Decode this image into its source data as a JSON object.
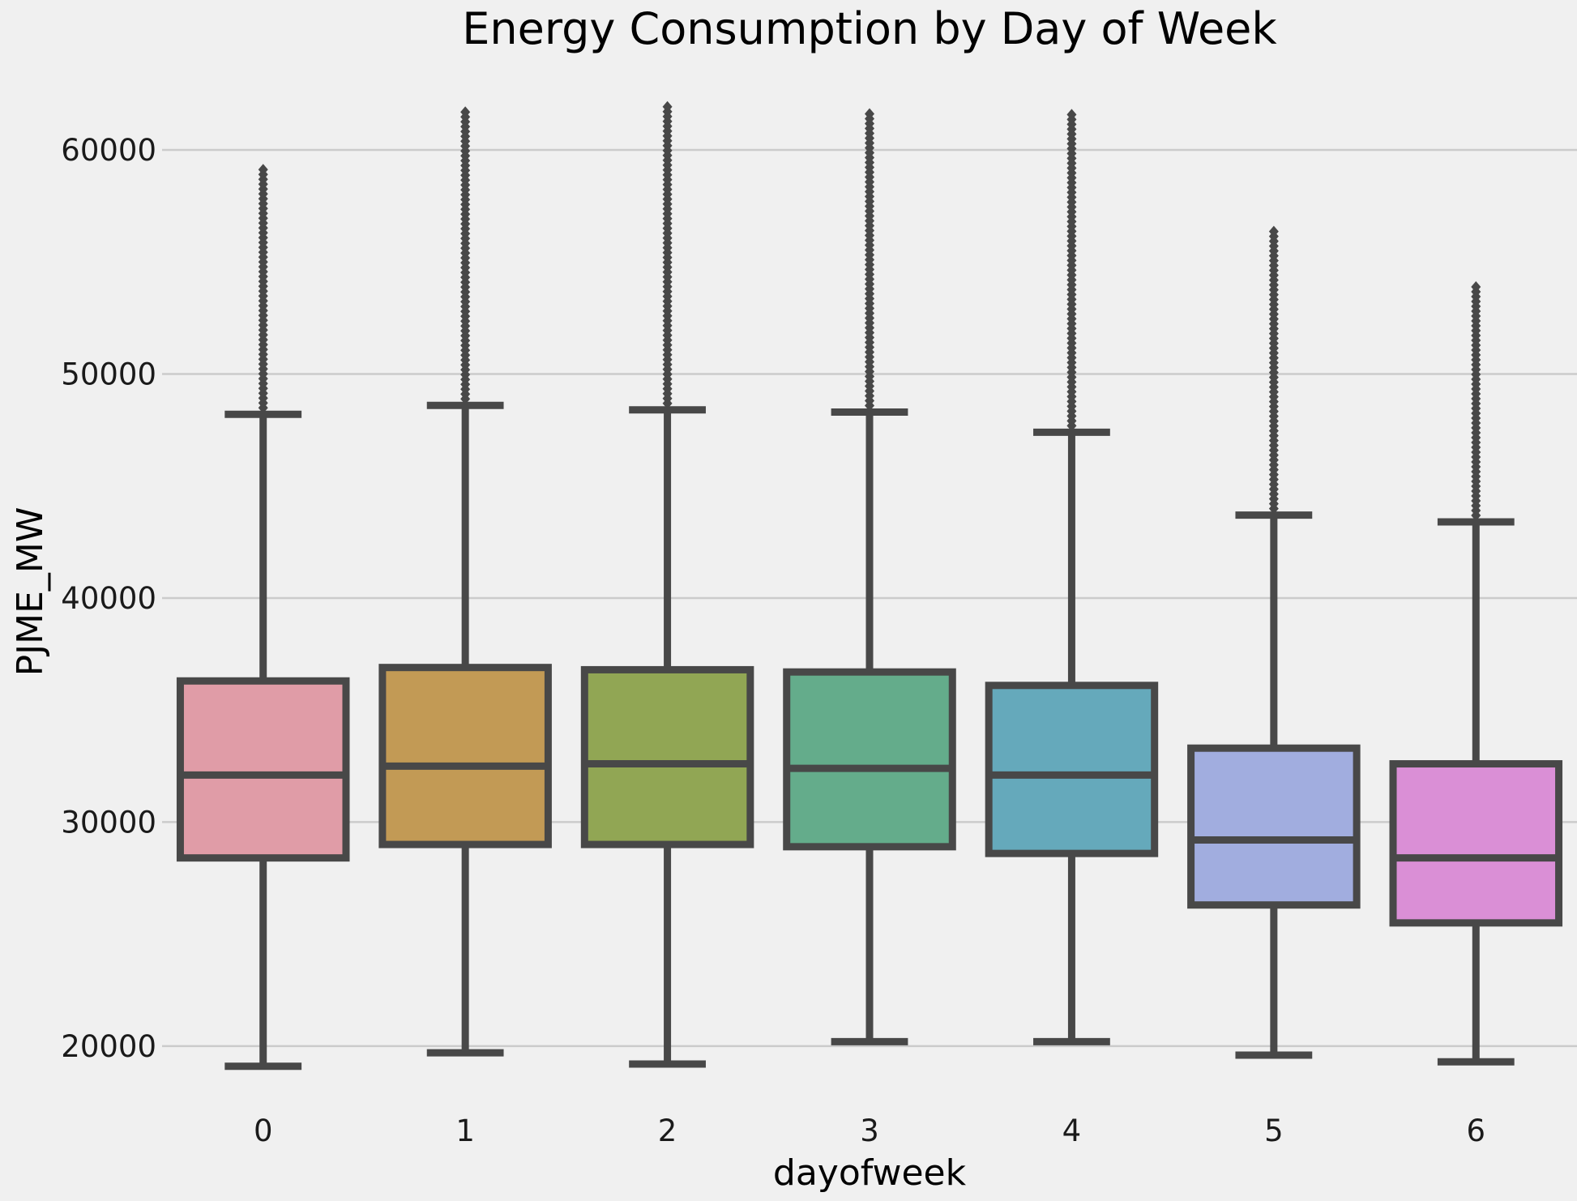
{
  "chart_data": {
    "type": "box",
    "title": "Energy Consumption by Day of Week",
    "xlabel": "dayofweek",
    "ylabel": "PJME_MW",
    "ylim": [
      17500,
      63800
    ],
    "yticks": [
      20000,
      30000,
      40000,
      50000,
      60000
    ],
    "grid": "horizontal",
    "categories": [
      "0",
      "1",
      "2",
      "3",
      "4",
      "5",
      "6"
    ],
    "colors": [
      "#e09ca7",
      "#c29a55",
      "#91a654",
      "#64ac8b",
      "#65a9bb",
      "#a1addf",
      "#da8fd6"
    ],
    "line_color": "#484848",
    "boxes": [
      {
        "category": "0",
        "whisker_low": 19100,
        "q1": 28400,
        "median": 32100,
        "q3": 36300,
        "whisker_high": 48200,
        "outlier_max": 59200
      },
      {
        "category": "1",
        "whisker_low": 19700,
        "q1": 29000,
        "median": 32500,
        "q3": 36900,
        "whisker_high": 48600,
        "outlier_max": 61700
      },
      {
        "category": "2",
        "whisker_low": 19200,
        "q1": 29000,
        "median": 32600,
        "q3": 36800,
        "whisker_high": 48400,
        "outlier_max": 62000
      },
      {
        "category": "3",
        "whisker_low": 20200,
        "q1": 28900,
        "median": 32400,
        "q3": 36700,
        "whisker_high": 48300,
        "outlier_max": 61800
      },
      {
        "category": "4",
        "whisker_low": 20200,
        "q1": 28600,
        "median": 32100,
        "q3": 36100,
        "whisker_high": 47400,
        "outlier_max": 61600
      },
      {
        "category": "5",
        "whisker_low": 19600,
        "q1": 26300,
        "median": 29200,
        "q3": 33300,
        "whisker_high": 43700,
        "outlier_max": 56500
      },
      {
        "category": "6",
        "whisker_low": 19300,
        "q1": 25500,
        "median": 28400,
        "q3": 32600,
        "whisker_high": 43400,
        "outlier_max": 53900
      }
    ]
  }
}
